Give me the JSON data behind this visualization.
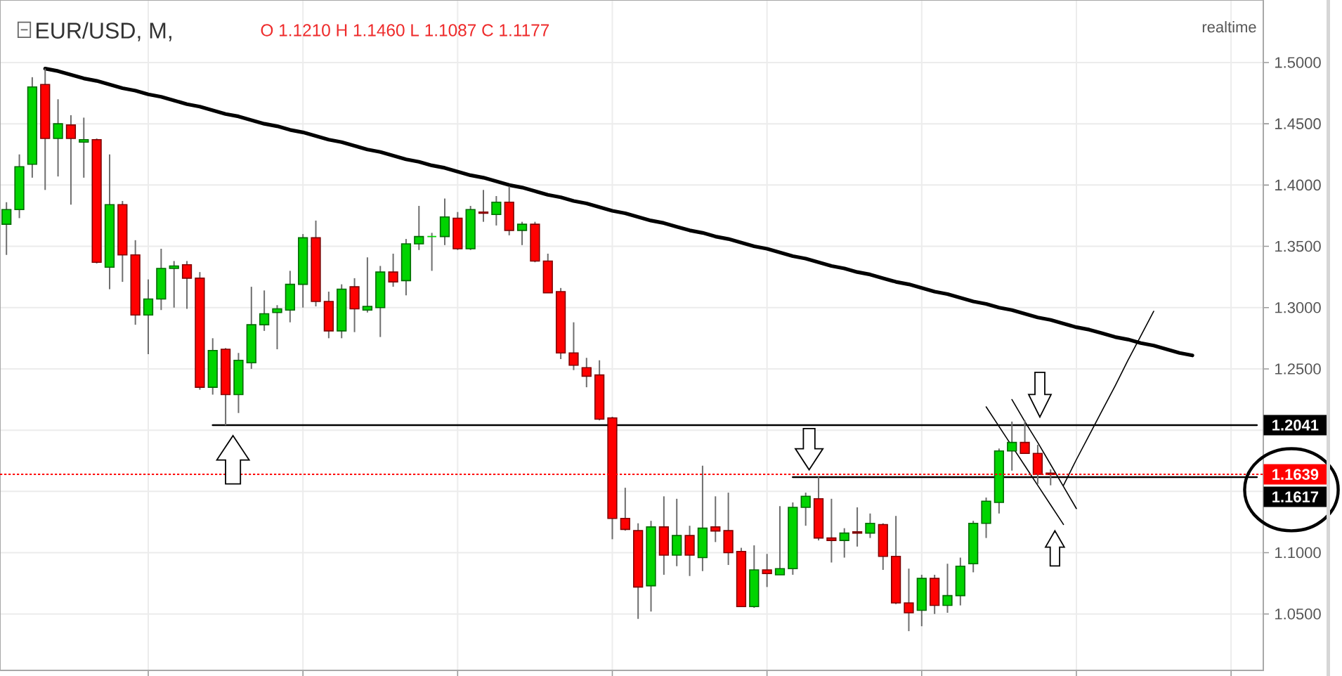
{
  "chart_data": {
    "type": "candlestick",
    "title": "EUR/USD, M,",
    "subtitle": "O 1.1210 H 1.1460 L 1.1087 C 1.1177",
    "annotations": [
      "realtime"
    ],
    "categories": [
      null,
      null,
      null,
      null,
      null,
      null,
      null,
      null,
      null,
      null,
      null,
      null,
      null,
      null,
      null,
      null,
      null,
      null,
      null,
      null,
      null,
      null,
      null,
      null,
      null,
      null,
      null,
      null,
      null,
      null,
      null,
      null,
      null,
      null,
      null,
      null,
      null,
      null,
      null,
      null,
      null,
      null,
      null,
      null,
      null,
      null,
      null,
      null,
      null,
      null,
      null,
      null,
      null,
      null,
      null,
      null,
      null,
      null,
      null,
      null,
      null,
      null,
      null,
      null,
      null,
      null,
      null,
      null,
      null,
      null,
      null,
      null,
      null,
      null,
      null,
      null,
      null,
      null,
      null,
      null,
      null,
      null,
      null,
      null,
      null,
      null,
      null,
      null,
      null,
      null,
      null,
      null,
      null,
      null,
      null,
      null,
      null,
      null
    ],
    "ohlc": [
      [
        1.368,
        1.386,
        1.343,
        1.38
      ],
      [
        1.38,
        1.425,
        1.373,
        1.415
      ],
      [
        1.417,
        1.488,
        1.406,
        1.48
      ],
      [
        1.482,
        1.495,
        1.396,
        1.438
      ],
      [
        1.438,
        1.47,
        1.407,
        1.45
      ],
      [
        1.449,
        1.457,
        1.384,
        1.438
      ],
      [
        1.435,
        1.455,
        1.406,
        1.437
      ],
      [
        1.437,
        1.438,
        1.336,
        1.337
      ],
      [
        1.333,
        1.425,
        1.315,
        1.384
      ],
      [
        1.384,
        1.387,
        1.321,
        1.343
      ],
      [
        1.343,
        1.355,
        1.286,
        1.294
      ],
      [
        1.294,
        1.323,
        1.262,
        1.307
      ],
      [
        1.307,
        1.348,
        1.298,
        1.332
      ],
      [
        1.332,
        1.338,
        1.3,
        1.334
      ],
      [
        1.335,
        1.338,
        1.299,
        1.324
      ],
      [
        1.324,
        1.329,
        1.233,
        1.235
      ],
      [
        1.235,
        1.275,
        1.229,
        1.265
      ],
      [
        1.266,
        1.267,
        1.204,
        1.229
      ],
      [
        1.229,
        1.263,
        1.214,
        1.257
      ],
      [
        1.255,
        1.317,
        1.25,
        1.286
      ],
      [
        1.286,
        1.314,
        1.281,
        1.295
      ],
      [
        1.296,
        1.302,
        1.266,
        1.299
      ],
      [
        1.298,
        1.33,
        1.288,
        1.319
      ],
      [
        1.319,
        1.36,
        1.3,
        1.357
      ],
      [
        1.357,
        1.371,
        1.301,
        1.305
      ],
      [
        1.305,
        1.313,
        1.275,
        1.281
      ],
      [
        1.281,
        1.319,
        1.275,
        1.315
      ],
      [
        1.317,
        1.324,
        1.28,
        1.299
      ],
      [
        1.298,
        1.341,
        1.296,
        1.301
      ],
      [
        1.3,
        1.334,
        1.276,
        1.329
      ],
      [
        1.329,
        1.344,
        1.317,
        1.321
      ],
      [
        1.322,
        1.356,
        1.31,
        1.352
      ],
      [
        1.352,
        1.383,
        1.347,
        1.358
      ],
      [
        1.358,
        1.361,
        1.33,
        1.358
      ],
      [
        1.358,
        1.389,
        1.351,
        1.374
      ],
      [
        1.373,
        1.378,
        1.347,
        1.348
      ],
      [
        1.348,
        1.383,
        1.347,
        1.38
      ],
      [
        1.378,
        1.396,
        1.37,
        1.377
      ],
      [
        1.376,
        1.391,
        1.367,
        1.386
      ],
      [
        1.386,
        1.399,
        1.359,
        1.363
      ],
      [
        1.363,
        1.37,
        1.351,
        1.368
      ],
      [
        1.368,
        1.37,
        1.337,
        1.338
      ],
      [
        1.338,
        1.344,
        1.312,
        1.312
      ],
      [
        1.313,
        1.316,
        1.258,
        1.263
      ],
      [
        1.263,
        1.288,
        1.249,
        1.253
      ],
      [
        1.251,
        1.259,
        1.235,
        1.244
      ],
      [
        1.245,
        1.257,
        1.208,
        1.209
      ],
      [
        1.21,
        1.211,
        1.111,
        1.128
      ],
      [
        1.128,
        1.153,
        1.118,
        1.119
      ],
      [
        1.118,
        1.124,
        1.046,
        1.072
      ],
      [
        1.073,
        1.126,
        1.052,
        1.121
      ],
      [
        1.121,
        1.146,
        1.082,
        1.098
      ],
      [
        1.098,
        1.144,
        1.089,
        1.114
      ],
      [
        1.114,
        1.122,
        1.081,
        1.098
      ],
      [
        1.096,
        1.171,
        1.085,
        1.12
      ],
      [
        1.121,
        1.146,
        1.1087,
        1.1177
      ],
      [
        1.118,
        1.149,
        1.09,
        1.1
      ],
      [
        1.101,
        1.104,
        1.056,
        1.056
      ],
      [
        1.056,
        1.106,
        1.055,
        1.086
      ],
      [
        1.086,
        1.099,
        1.072,
        1.083
      ],
      [
        1.082,
        1.138,
        1.082,
        1.087
      ],
      [
        1.087,
        1.141,
        1.082,
        1.137
      ],
      [
        1.137,
        1.149,
        1.122,
        1.146
      ],
      [
        1.144,
        1.162,
        1.11,
        1.112
      ],
      [
        1.112,
        1.144,
        1.092,
        1.11
      ],
      [
        1.11,
        1.12,
        1.096,
        1.116
      ],
      [
        1.117,
        1.137,
        1.105,
        1.116
      ],
      [
        1.116,
        1.132,
        1.112,
        1.124
      ],
      [
        1.123,
        1.124,
        1.086,
        1.097
      ],
      [
        1.097,
        1.13,
        1.058,
        1.059
      ],
      [
        1.059,
        1.087,
        1.036,
        1.051
      ],
      [
        1.053,
        1.082,
        1.04,
        1.079
      ],
      [
        1.079,
        1.082,
        1.05,
        1.057
      ],
      [
        1.057,
        1.091,
        1.051,
        1.065
      ],
      [
        1.065,
        1.096,
        1.057,
        1.089
      ],
      [
        1.091,
        1.126,
        1.084,
        1.124
      ],
      [
        1.124,
        1.145,
        1.112,
        1.142
      ],
      [
        1.141,
        1.185,
        1.132,
        1.183
      ],
      [
        1.183,
        1.207,
        1.167,
        1.19
      ],
      [
        1.19,
        1.208,
        1.181,
        1.181
      ],
      [
        1.181,
        1.188,
        1.156,
        1.164
      ],
      [
        1.165,
        1.168,
        1.155,
        1.1639
      ],
      null,
      null,
      null,
      null,
      null,
      null,
      null,
      null,
      null,
      null,
      null,
      null,
      null,
      null,
      null,
      null
    ],
    "colors": [
      "#00d400",
      "#00d400",
      "#00d400",
      "#ff0000",
      "#00d400",
      "#ff0000",
      "#00d400",
      "#ff0000",
      "#00d400",
      "#ff0000",
      "#ff0000",
      "#00d400",
      "#00d400",
      "#00d400",
      "#ff0000",
      "#ff0000",
      "#00d400",
      "#ff0000",
      "#00d400",
      "#00d400",
      "#00d400",
      "#00d400",
      "#00d400",
      "#00d400",
      "#ff0000",
      "#ff0000",
      "#00d400",
      "#ff0000",
      "#00d400",
      "#00d400",
      "#ff0000",
      "#00d400",
      "#00d400",
      "#00d400",
      "#00d400",
      "#ff0000",
      "#00d400",
      "#ff0000",
      "#00d400",
      "#ff0000",
      "#00d400",
      "#ff0000",
      "#ff0000",
      "#ff0000",
      "#ff0000",
      "#ff0000",
      "#ff0000",
      "#ff0000",
      "#ff0000",
      "#ff0000",
      "#00d400",
      "#ff0000",
      "#00d400",
      "#ff0000",
      "#00d400",
      "#ff0000",
      "#ff0000",
      "#ff0000",
      "#00d400",
      "#ff0000",
      "#00d400",
      "#00d400",
      "#00d400",
      "#ff0000",
      "#ff0000",
      "#00d400",
      "#ff0000",
      "#00d400",
      "#ff0000",
      "#ff0000",
      "#ff0000",
      "#00d400",
      "#ff0000",
      "#00d400",
      "#00d400",
      "#00d400",
      "#00d400",
      "#00d400",
      "#00d400",
      "#ff0000",
      "#ff0000",
      "#ff0000",
      null,
      null,
      null,
      null,
      null,
      null,
      null,
      null,
      null,
      null,
      null,
      null,
      null,
      null,
      null,
      null
    ],
    "series": [
      {
        "type": "line",
        "color": "#000000",
        "values": [
          null,
          null,
          null,
          1.495,
          1.493,
          1.49,
          1.487,
          1.485,
          1.482,
          1.479,
          1.477,
          1.474,
          1.472,
          1.469,
          1.466,
          1.464,
          1.461,
          1.458,
          1.456,
          1.453,
          1.45,
          1.448,
          1.445,
          1.443,
          1.44,
          1.437,
          1.435,
          1.432,
          1.429,
          1.427,
          1.424,
          1.421,
          1.419,
          1.416,
          1.414,
          1.411,
          1.408,
          1.406,
          1.403,
          1.4,
          1.398,
          1.395,
          1.392,
          1.39,
          1.387,
          1.385,
          1.382,
          1.379,
          1.377,
          1.374,
          1.371,
          1.369,
          1.366,
          1.363,
          1.361,
          1.358,
          1.356,
          1.353,
          1.35,
          1.348,
          1.345,
          1.342,
          1.34,
          1.337,
          1.334,
          1.332,
          1.329,
          1.327,
          1.324,
          1.321,
          1.319,
          1.316,
          1.313,
          1.311,
          1.308,
          1.305,
          1.303,
          1.3,
          1.298,
          1.295,
          1.292,
          1.29,
          1.287,
          1.284,
          1.282,
          1.279,
          1.276,
          1.274,
          1.271,
          1.269,
          1.266,
          1.263,
          1.261,
          null,
          null,
          null,
          null,
          null
        ]
      },
      {
        "type": "line",
        "name": "1.2041",
        "color": "#000000",
        "values": [
          null,
          null,
          null,
          null,
          null,
          null,
          null,
          null,
          null,
          null,
          null,
          null,
          null,
          null,
          null,
          null,
          1.2041,
          1.2041,
          1.2041,
          1.2041,
          1.2041,
          1.2041,
          1.2041,
          1.2041,
          1.2041,
          1.2041,
          1.2041,
          1.2041,
          1.2041,
          1.2041,
          1.2041,
          1.2041,
          1.2041,
          1.2041,
          1.2041,
          1.2041,
          1.2041,
          1.2041,
          1.2041,
          1.2041,
          1.2041,
          1.2041,
          1.2041,
          1.2041,
          1.2041,
          1.2041,
          1.2041,
          1.2041,
          1.2041,
          1.2041,
          1.2041,
          1.2041,
          1.2041,
          1.2041,
          1.2041,
          1.2041,
          1.2041,
          1.2041,
          1.2041,
          1.2041,
          1.2041,
          1.2041,
          1.2041,
          1.2041,
          1.2041,
          1.2041,
          1.2041,
          1.2041,
          1.2041,
          1.2041,
          1.2041,
          1.2041,
          1.2041,
          1.2041,
          1.2041,
          1.2041,
          1.2041,
          1.2041,
          1.2041,
          1.2041,
          1.2041,
          1.2041,
          1.2041,
          1.2041,
          1.2041,
          1.2041,
          1.2041,
          1.2041,
          1.2041,
          1.2041,
          1.2041,
          1.2041,
          1.2041,
          1.2041,
          1.2041,
          1.2041,
          1.2041,
          1.2041
        ]
      },
      {
        "type": "line",
        "name": "1.1617",
        "color": "#000000",
        "values": [
          null,
          null,
          null,
          null,
          null,
          null,
          null,
          null,
          null,
          null,
          null,
          null,
          null,
          null,
          null,
          null,
          null,
          null,
          null,
          null,
          null,
          null,
          null,
          null,
          null,
          null,
          null,
          null,
          null,
          null,
          null,
          null,
          null,
          null,
          null,
          null,
          null,
          null,
          null,
          null,
          null,
          null,
          null,
          null,
          null,
          null,
          null,
          null,
          null,
          null,
          null,
          null,
          null,
          null,
          null,
          null,
          null,
          null,
          null,
          null,
          null,
          1.1617,
          1.1617,
          1.1617,
          1.1617,
          1.1617,
          1.1617,
          1.1617,
          1.1617,
          1.1617,
          1.1617,
          1.1617,
          1.1617,
          1.1617,
          1.1617,
          1.1617,
          1.1617,
          1.1617,
          1.1617,
          1.1617,
          1.1617,
          1.1617,
          1.1617,
          1.1617,
          1.1617,
          1.1617,
          1.1617,
          1.1617,
          1.1617,
          1.1617,
          1.1617,
          1.1617,
          1.1617,
          1.1617,
          1.1617,
          1.1617,
          1.1617,
          1.1617
        ]
      },
      {
        "type": "line",
        "color": "#000000",
        "values": [
          null,
          null,
          null,
          null,
          null,
          null,
          null,
          null,
          null,
          null,
          null,
          null,
          null,
          null,
          null,
          null,
          null,
          null,
          null,
          null,
          null,
          null,
          null,
          null,
          null,
          null,
          null,
          null,
          null,
          null,
          null,
          null,
          null,
          null,
          null,
          null,
          null,
          null,
          null,
          null,
          null,
          null,
          null,
          null,
          null,
          null,
          null,
          null,
          null,
          null,
          null,
          null,
          null,
          null,
          null,
          null,
          null,
          null,
          null,
          null,
          null,
          null,
          null,
          null,
          null,
          null,
          null,
          null,
          null,
          null,
          null,
          null,
          null,
          null,
          null,
          null,
          1.219,
          1.203,
          1.187,
          1.171,
          1.155,
          1.139,
          1.123,
          null,
          null,
          null,
          null,
          null,
          null,
          null,
          null,
          null,
          null,
          null,
          null,
          null,
          null,
          null
        ]
      },
      {
        "type": "line",
        "color": "#000000",
        "values": [
          null,
          null,
          null,
          null,
          null,
          null,
          null,
          null,
          null,
          null,
          null,
          null,
          null,
          null,
          null,
          null,
          null,
          null,
          null,
          null,
          null,
          null,
          null,
          null,
          null,
          null,
          null,
          null,
          null,
          null,
          null,
          null,
          null,
          null,
          null,
          null,
          null,
          null,
          null,
          null,
          null,
          null,
          null,
          null,
          null,
          null,
          null,
          null,
          null,
          null,
          null,
          null,
          null,
          null,
          null,
          null,
          null,
          null,
          null,
          null,
          null,
          null,
          null,
          null,
          null,
          null,
          null,
          null,
          null,
          null,
          null,
          null,
          null,
          null,
          null,
          null,
          null,
          null,
          1.225,
          1.207,
          1.19,
          1.172,
          1.154,
          1.136,
          null,
          null,
          null,
          null,
          null,
          null,
          null,
          null,
          null,
          null,
          null,
          null,
          null,
          null
        ]
      },
      {
        "type": "line",
        "color": "#000000",
        "values": [
          null,
          null,
          null,
          null,
          null,
          null,
          null,
          null,
          null,
          null,
          null,
          null,
          null,
          null,
          null,
          null,
          null,
          null,
          null,
          null,
          null,
          null,
          null,
          null,
          null,
          null,
          null,
          null,
          null,
          null,
          null,
          null,
          null,
          null,
          null,
          null,
          null,
          null,
          null,
          null,
          null,
          null,
          null,
          null,
          null,
          null,
          null,
          null,
          null,
          null,
          null,
          null,
          null,
          null,
          null,
          null,
          null,
          null,
          null,
          null,
          null,
          null,
          null,
          null,
          null,
          null,
          null,
          null,
          null,
          null,
          null,
          null,
          null,
          null,
          null,
          null,
          null,
          null,
          null,
          null,
          null,
          null,
          1.155,
          1.176,
          1.196,
          1.216,
          1.236,
          1.257,
          1.277,
          1.297,
          null,
          null,
          null,
          null,
          null,
          null,
          null,
          null
        ]
      }
    ],
    "ylim": [
      1.004,
      1.551
    ],
    "yticks": [
      {
        "value": 1.05,
        "label": "1.0500"
      },
      {
        "value": 1.1,
        "label": "1.1000"
      },
      {
        "value": 1.15,
        "label": null
      },
      {
        "value": 1.2,
        "label": null
      },
      {
        "value": 1.25,
        "label": "1.2500"
      },
      {
        "value": 1.3,
        "label": "1.3000"
      },
      {
        "value": 1.35,
        "label": "1.3500"
      },
      {
        "value": 1.4,
        "label": "1.4000"
      },
      {
        "value": 1.45,
        "label": "1.4500"
      },
      {
        "value": 1.5,
        "label": "1.5000"
      }
    ],
    "grid": true,
    "tick_labels": "y",
    "ref_lines": [
      {
        "axis": "y",
        "value": 1.1639,
        "label": "1.1639",
        "color": "#ff0000",
        "line_style": "dotted"
      }
    ]
  }
}
